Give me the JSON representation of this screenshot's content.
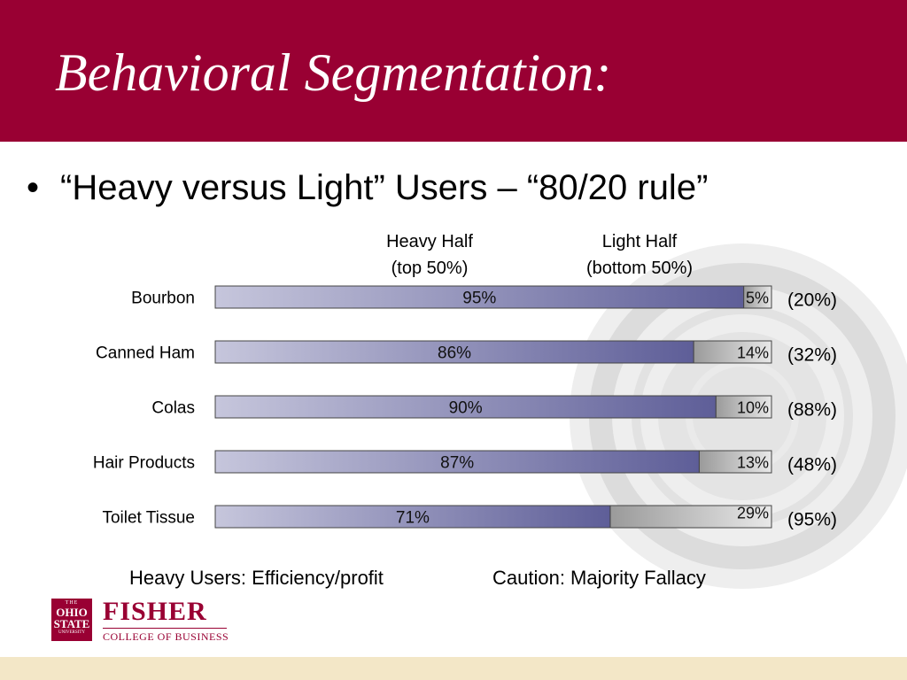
{
  "slide": {
    "title": "Behavioral Segmentation:",
    "bullet": "“Heavy versus Light” Users – “80/20 rule”",
    "heavy_header": [
      "Heavy Half",
      "(top 50%)"
    ],
    "light_header": [
      "Light Half",
      "(bottom 50%)"
    ],
    "footer_left": "Heavy Users: Efficiency/profit",
    "footer_right": "Caution: Majority Fallacy"
  },
  "logo": {
    "osu_the": "THE",
    "osu_line1": "OHIO",
    "osu_line2": "STATE",
    "osu_line3": "UNIVERSITY",
    "fisher": "FISHER",
    "college": "COLLEGE OF BUSINESS"
  },
  "colors": {
    "header": "#990033",
    "heavy_bar_start": "#c6c6dc",
    "heavy_bar_end": "#5e5e98",
    "light_bar_start": "#9a9a9a",
    "light_bar_end": "#e8e8e8",
    "footer_band": "#f3e7c7"
  },
  "chart_data": {
    "type": "bar",
    "orientation": "horizontal",
    "stacked": true,
    "categories": [
      "Bourbon",
      "Canned Ham",
      "Colas",
      "Hair Products",
      "Toilet Tissue"
    ],
    "series": [
      {
        "name": "Heavy Half",
        "values": [
          95,
          86,
          90,
          87,
          71
        ],
        "labels": [
          "95%",
          "86%",
          "90%",
          "87%",
          "71%"
        ]
      },
      {
        "name": "Light Half",
        "values": [
          5,
          14,
          10,
          13,
          29
        ],
        "labels": [
          "5%",
          "14%",
          "10%",
          "13%",
          "29%"
        ]
      }
    ],
    "annotations": [
      "(20%)",
      "(32%)",
      "(88%)",
      "(48%)",
      "(95%)"
    ],
    "xlim": [
      0,
      100
    ],
    "grid": false
  }
}
